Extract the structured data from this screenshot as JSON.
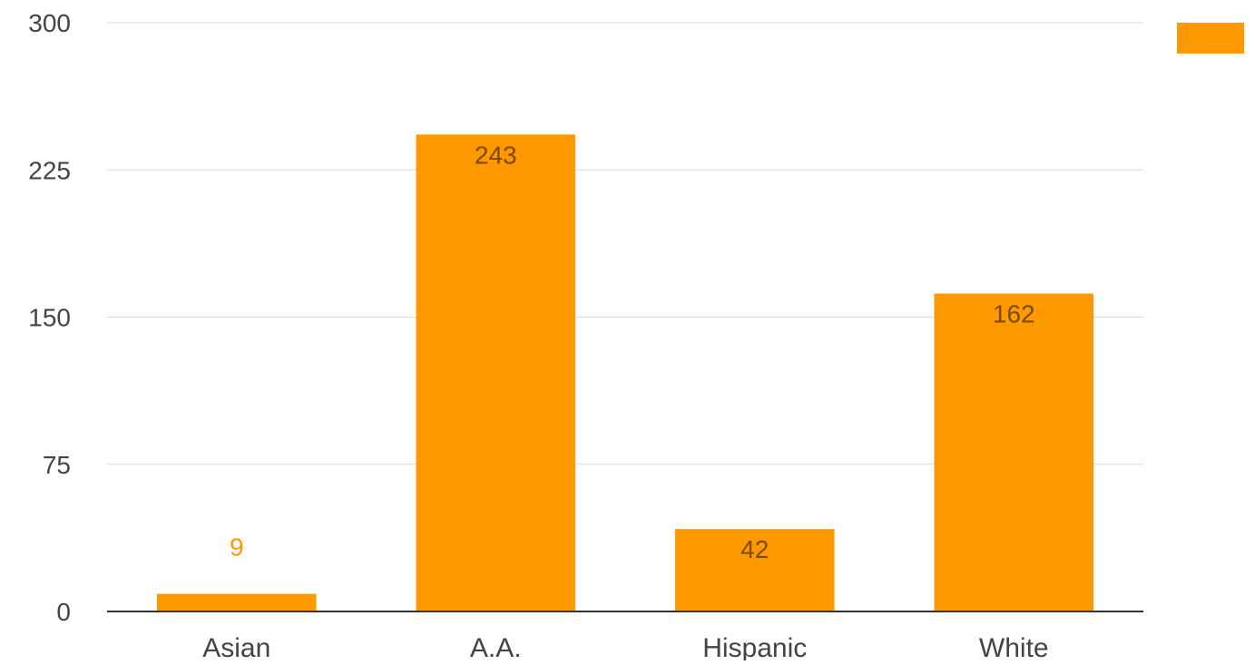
{
  "chart_data": {
    "type": "bar",
    "categories": [
      "Asian",
      "A.A.",
      "Hispanic",
      "White"
    ],
    "values": [
      9,
      243,
      42,
      162
    ],
    "ylim": [
      0,
      300
    ],
    "yticks": [
      0,
      75,
      150,
      225,
      300
    ],
    "grid": true,
    "legend": {
      "placement": "top-right",
      "label": ""
    },
    "colors": {
      "bar": "#FF9900",
      "label_inside": "#7a4a00",
      "label_outside": "#FF9900",
      "grid": "#d9d9d9",
      "axis": "#333333",
      "tick_text": "#444444"
    }
  }
}
